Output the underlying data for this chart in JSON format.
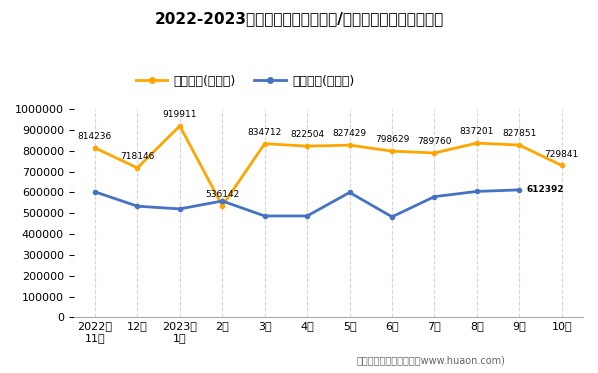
{
  "title": "2022-2023年宁波市（境内目的地/货源地）进、出口额统计",
  "x_labels": [
    "2022年\n11月",
    "12月",
    "2023年\n1月",
    "2月",
    "3月",
    "4月",
    "5月",
    "6月",
    "7月",
    "8月",
    "9月",
    "10月"
  ],
  "export_values": [
    814236,
    718146,
    919911,
    536142,
    834712,
    822504,
    827429,
    798629,
    789760,
    837201,
    827851,
    729841
  ],
  "import_values": [
    603000,
    534000,
    521000,
    559000,
    487000,
    487000,
    600000,
    483000,
    580000,
    605000,
    612392
  ],
  "export_label": "出口总额(万美元)",
  "import_label": "进口总额(万美元)",
  "export_color": "#FFA500",
  "import_color": "#4472C4",
  "ylim": [
    0,
    1000000
  ],
  "yticks": [
    0,
    100000,
    200000,
    300000,
    400000,
    500000,
    600000,
    700000,
    800000,
    900000,
    1000000
  ],
  "footer": "制图：华经产业研究院（www.huaon.com)",
  "gridline_color": "#cccccc",
  "import_last_value": 612392,
  "import_last_index": 10
}
